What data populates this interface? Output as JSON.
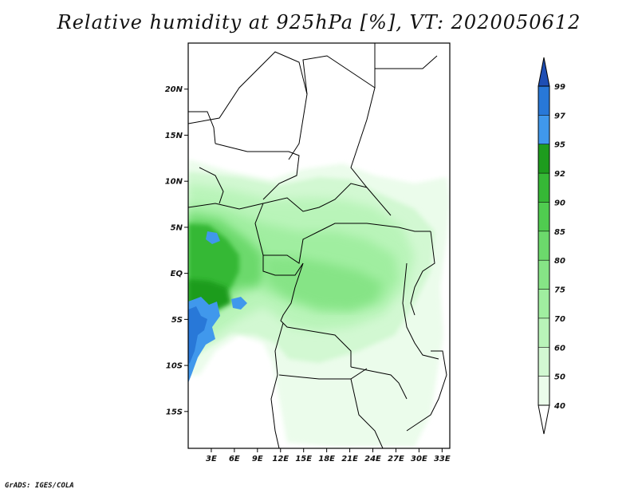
{
  "title": "Relative humidity at 925hPa [%], VT: 2020050612",
  "credit": "GrADS: IGES/COLA",
  "map": {
    "lon_range": [
      0,
      34
    ],
    "lat_range": [
      -19,
      25
    ],
    "lat_ticks": [
      {
        "label": "20N",
        "lat": 20
      },
      {
        "label": "15N",
        "lat": 15
      },
      {
        "label": "10N",
        "lat": 10
      },
      {
        "label": "5N",
        "lat": 5
      },
      {
        "label": "EQ",
        "lat": 0
      },
      {
        "label": "5S",
        "lat": -5
      },
      {
        "label": "10S",
        "lat": -10
      },
      {
        "label": "15S",
        "lat": -15
      }
    ],
    "lon_ticks": [
      {
        "label": "3E",
        "lon": 3
      },
      {
        "label": "6E",
        "lon": 6
      },
      {
        "label": "9E",
        "lon": 9
      },
      {
        "label": "12E",
        "lon": 12
      },
      {
        "label": "15E",
        "lon": 15
      },
      {
        "label": "18E",
        "lon": 18
      },
      {
        "label": "21E",
        "lon": 21
      },
      {
        "label": "24E",
        "lon": 24
      },
      {
        "label": "27E",
        "lon": 27
      },
      {
        "label": "30E",
        "lon": 30
      },
      {
        "label": "33E",
        "lon": 33
      }
    ]
  },
  "colorbar": {
    "levels": [
      "40",
      "50",
      "60",
      "70",
      "75",
      "80",
      "85",
      "90",
      "92",
      "95",
      "97",
      "99"
    ],
    "colors": [
      "#ebfceb",
      "#d2f8d2",
      "#b9f4b9",
      "#a0eea0",
      "#86e486",
      "#6cd96c",
      "#50cc50",
      "#36b836",
      "#1e9c1e",
      "#4098ec",
      "#2878d8",
      "#1e5cc8",
      "#1e4eb4"
    ],
    "under_color": "#ffffff"
  }
}
